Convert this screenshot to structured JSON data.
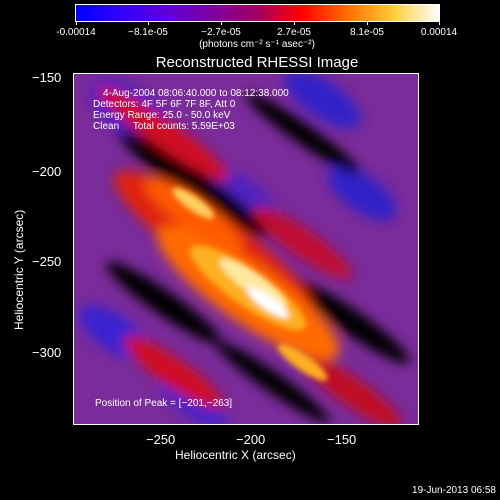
{
  "colorbar": {
    "tick_labels": [
      "-0.00014",
      "−8.1e-05",
      "−2.7e-05",
      "2.7e-05",
      "8.1e-05",
      "0.00014"
    ],
    "unit_label": "(photons cm⁻² s⁻¹ asec⁻²)"
  },
  "image": {
    "title": "Reconstructed RHESSI Image",
    "time_range": "4-Aug-2004 08:06:40.000 to 08:12:38.000",
    "detectors": "Detectors: 4F 5F 6F 7F 8F, Att 0",
    "energy_range": "Energy Range: 25.0 - 50.0 keV",
    "clean_counts": "Clean     Total counts: 5.59E+03",
    "peak_position": "Position of Peak = [−201,−263]"
  },
  "axes": {
    "xlabel": "Heliocentric X (arcsec)",
    "ylabel": "Heliocentric Y (arcsec)",
    "x_ticks": [
      "−250",
      "−200",
      "−150"
    ],
    "y_ticks": [
      "−150",
      "−200",
      "−250",
      "−300"
    ]
  },
  "footer": {
    "timestamp": "19-Jun-2013 06:58"
  },
  "colors": {
    "background": "#000000",
    "text": "#ffffff",
    "colormap": [
      "#0000ff",
      "#6000d8",
      "#a00060",
      "#ff0000",
      "#ff7000",
      "#ffd040",
      "#ffffff"
    ]
  }
}
